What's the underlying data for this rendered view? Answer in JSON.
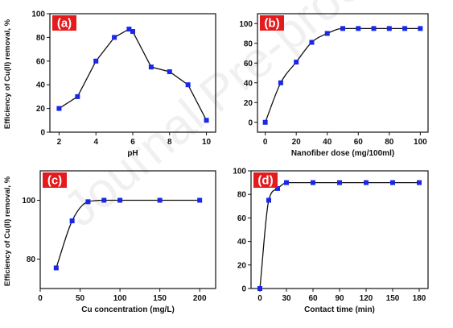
{
  "watermark": "Journal Pre-proof",
  "ylabel": "Efficiency of Cu(II) removal, %",
  "colors": {
    "marker": "#1a27e8",
    "line": "#111111",
    "label_bg": "#e41a1c",
    "axis": "#111111"
  },
  "chart_data": [
    {
      "type": "line",
      "panel_label": "(a)",
      "xlabel": "pH",
      "ylabel": "Efficiency of Cu(II) removal, %",
      "xlim": [
        1.5,
        10.5
      ],
      "ylim": [
        0,
        100
      ],
      "xticks": [
        2,
        4,
        6,
        8,
        10
      ],
      "yticks": [
        0,
        20,
        40,
        60,
        80,
        100
      ],
      "x": [
        2,
        3,
        4,
        5,
        5.8,
        6,
        7,
        8,
        9,
        10
      ],
      "y": [
        20,
        30,
        60,
        80,
        87,
        85,
        55,
        51,
        40,
        10
      ]
    },
    {
      "type": "line",
      "panel_label": "(b)",
      "xlabel": "Nanofiber dose (mg/100ml)",
      "ylabel": "",
      "xlim": [
        -5,
        105
      ],
      "ylim": [
        -10,
        110
      ],
      "xticks": [
        0,
        20,
        40,
        60,
        80,
        100
      ],
      "yticks": [
        0,
        20,
        40,
        60,
        80,
        100
      ],
      "x": [
        0,
        10,
        20,
        30,
        40,
        50,
        60,
        70,
        80,
        90,
        100
      ],
      "y": [
        0,
        40,
        61,
        81,
        90,
        95,
        95,
        95,
        95,
        95,
        95
      ]
    },
    {
      "type": "line",
      "panel_label": "(c)",
      "xlabel": "Cu concentration (mg/L)",
      "ylabel": "Efficiency of Cu(II) removal, %",
      "xlim": [
        0,
        220
      ],
      "ylim": [
        70,
        110
      ],
      "xticks": [
        0,
        50,
        100,
        150,
        200
      ],
      "yticks": [
        80,
        100
      ],
      "x": [
        20,
        40,
        60,
        80,
        100,
        150,
        200
      ],
      "y": [
        77,
        93,
        99.5,
        100,
        100,
        100,
        100
      ]
    },
    {
      "type": "line",
      "panel_label": "(d)",
      "xlabel": "Contact time (min)",
      "ylabel": "",
      "xlim": [
        -10,
        190
      ],
      "ylim": [
        0,
        100
      ],
      "xticks": [
        0,
        30,
        60,
        90,
        120,
        150,
        180
      ],
      "yticks": [
        0,
        20,
        40,
        60,
        80,
        100
      ],
      "x": [
        0,
        10,
        20,
        30,
        60,
        90,
        120,
        150,
        180
      ],
      "y": [
        0,
        75,
        85,
        90,
        90,
        90,
        90,
        90,
        90
      ]
    }
  ]
}
